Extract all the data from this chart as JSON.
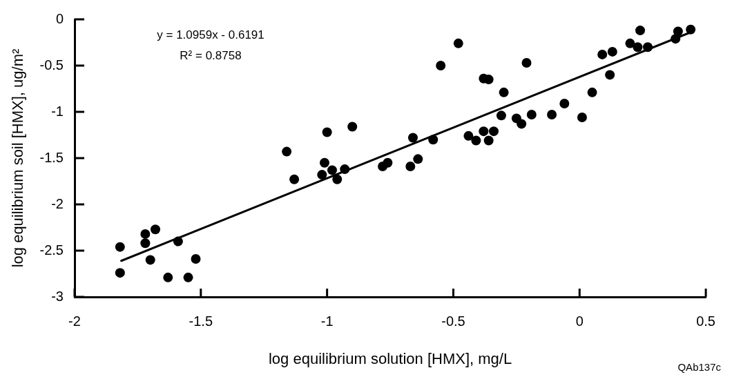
{
  "chart_data": {
    "type": "scatter",
    "xlabel": "log equilibrium solution [HMX], mg/L",
    "ylabel": "log equilibrium soil [HMX], ug/m²",
    "annotations": [
      "y = 1.0959x - 0.6191",
      "R² = 0.8758",
      "QAb137c"
    ],
    "xlim": [
      -2,
      0.5
    ],
    "xticks": [
      -2,
      -1.5,
      -1,
      -0.5,
      0,
      0.5
    ],
    "ylim": [
      -3,
      0
    ],
    "yticks": [
      -3,
      -2.5,
      -2,
      -1.5,
      -1,
      -0.5,
      0
    ],
    "marker": "circle",
    "series": [
      {
        "type": "scatter",
        "color": "#000000",
        "x": [
          -1.82,
          -1.82,
          -1.72,
          -1.72,
          -1.68,
          -1.7,
          -1.59,
          -1.63,
          -1.55,
          -1.52,
          -1.16,
          -1.13,
          -1.0,
          -0.9,
          -1.01,
          -1.02,
          -0.98,
          -0.96,
          -0.93,
          -0.78,
          -0.76,
          -0.67,
          -0.64,
          -0.66,
          -0.58,
          -0.44,
          -0.41,
          -0.48,
          -0.55,
          -0.38,
          -0.36,
          -0.3,
          -0.21,
          -0.31,
          -0.25,
          -0.23,
          -0.19,
          -0.38,
          -0.34,
          -0.36,
          -0.11,
          -0.06,
          0.01,
          0.05,
          0.12,
          0.09,
          0.13,
          0.2,
          0.23,
          0.24,
          0.27,
          0.38,
          0.39,
          0.44
        ],
        "values": [
          -2.46,
          -2.74,
          -2.32,
          -2.42,
          -2.27,
          -2.6,
          -2.4,
          -2.79,
          -2.79,
          -2.59,
          -1.43,
          -1.73,
          -1.22,
          -1.16,
          -1.55,
          -1.68,
          -1.63,
          -1.73,
          -1.62,
          -1.59,
          -1.55,
          -1.59,
          -1.51,
          -1.28,
          -1.3,
          -1.26,
          -1.31,
          -0.26,
          -0.5,
          -0.64,
          -0.65,
          -0.79,
          -0.47,
          -1.04,
          -1.07,
          -1.13,
          -1.03,
          -1.21,
          -1.21,
          -1.31,
          -1.03,
          -0.91,
          -1.06,
          -0.79,
          -0.6,
          -0.38,
          -0.35,
          -0.26,
          -0.3,
          -0.12,
          -0.3,
          -0.21,
          -0.13,
          -0.11
        ]
      },
      {
        "type": "line",
        "color": "#000000",
        "marker": "none",
        "line_style": "solid",
        "x": [
          -1.815,
          0.44
        ],
        "values": [
          -2.61,
          -0.14
        ]
      }
    ]
  }
}
